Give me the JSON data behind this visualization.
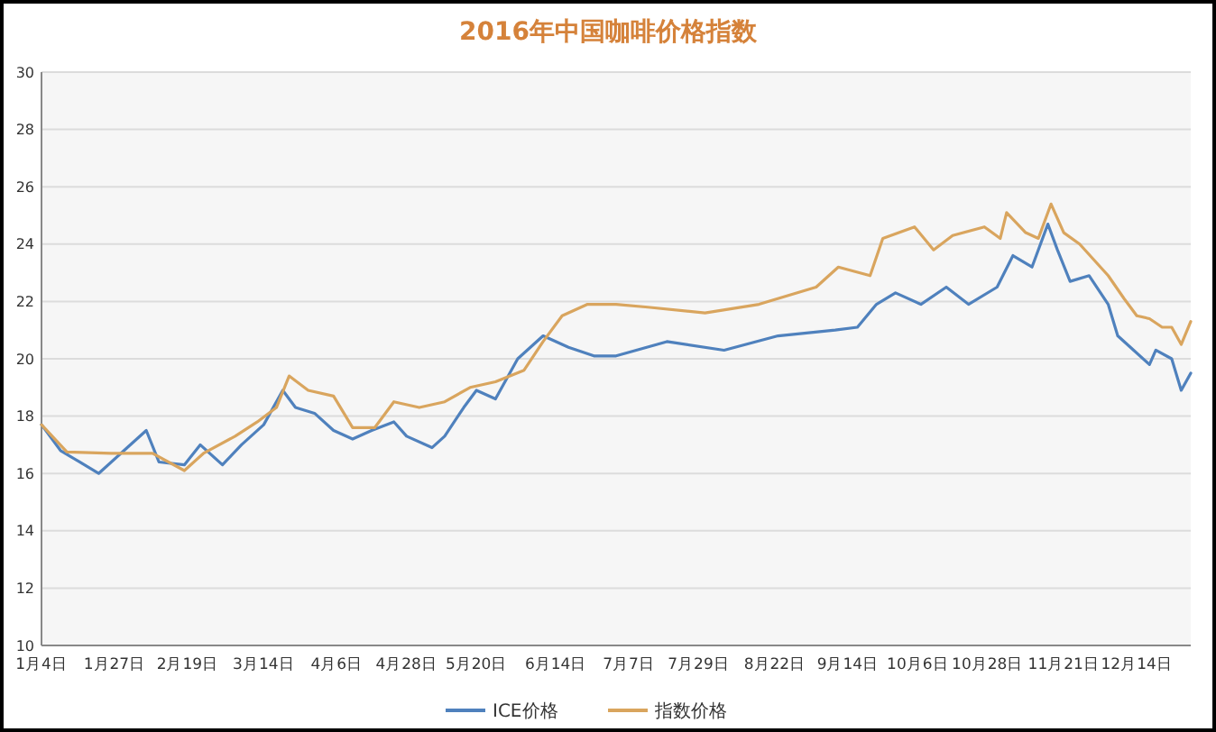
{
  "chart_data": {
    "type": "line",
    "title": "2016年中国咖啡价格指数",
    "xlim": [
      "--01-04",
      "--12-31"
    ],
    "xticks": [
      {
        "value": "--01-04",
        "label": "1月4日"
      },
      {
        "value": "--01-27",
        "label": "1月27日"
      },
      {
        "value": "--02-19",
        "label": "2月19日"
      },
      {
        "value": "--03-14",
        "label": "3月14日"
      },
      {
        "value": "--04-06",
        "label": "4月6日"
      },
      {
        "value": "--04-28",
        "label": "4月28日"
      },
      {
        "value": "--05-20",
        "label": "5月20日"
      },
      {
        "value": "--06-14",
        "label": "6月14日"
      },
      {
        "value": "--07-07",
        "label": "7月7日"
      },
      {
        "value": "--07-29",
        "label": "7月29日"
      },
      {
        "value": "--08-22",
        "label": "8月22日"
      },
      {
        "value": "--09-14",
        "label": "9月14日"
      },
      {
        "value": "--10-06",
        "label": "10月6日"
      },
      {
        "value": "--10-28",
        "label": "10月28日"
      },
      {
        "value": "--11-21",
        "label": "11月21日"
      },
      {
        "value": "--12-14",
        "label": "12月14日"
      }
    ],
    "ylim": [
      10,
      30
    ],
    "yticks": [
      10,
      12,
      14,
      16,
      18,
      20,
      22,
      24,
      26,
      28,
      30
    ],
    "grid": "y",
    "legend": "bottom",
    "marker": "none",
    "line_style": "solid",
    "series": [
      {
        "name": "ICE价格",
        "color": "#4f81bd",
        "x": [
          "--01-04",
          "--01-10",
          "--01-16",
          "--01-22",
          "--01-30",
          "--02-06",
          "--02-10",
          "--02-18",
          "--02-23",
          "--03-01",
          "--03-07",
          "--03-14",
          "--03-20",
          "--03-24",
          "--03-30",
          "--04-05",
          "--04-11",
          "--04-17",
          "--04-24",
          "--04-28",
          "--05-06",
          "--05-10",
          "--05-16",
          "--05-20",
          "--05-26",
          "--06-02",
          "--06-10",
          "--06-18",
          "--06-26",
          "--07-03",
          "--07-19",
          "--08-06",
          "--08-23",
          "--09-10",
          "--09-17",
          "--09-23",
          "--09-29",
          "--10-07",
          "--10-15",
          "--10-22",
          "--10-31",
          "--11-05",
          "--11-11",
          "--11-16",
          "--11-19",
          "--11-23",
          "--11-29",
          "--12-05",
          "--12-08",
          "--12-12",
          "--12-18",
          "--12-20",
          "--12-25",
          "--12-28",
          "--12-31"
        ],
        "values": [
          17.7,
          16.8,
          16.4,
          16.0,
          16.8,
          17.5,
          16.4,
          16.3,
          17.0,
          16.3,
          17.0,
          17.7,
          18.9,
          18.3,
          18.1,
          17.5,
          17.2,
          17.5,
          17.8,
          17.3,
          16.9,
          17.3,
          18.3,
          18.9,
          18.6,
          20.0,
          20.8,
          20.4,
          20.1,
          20.1,
          20.6,
          20.3,
          20.8,
          21.0,
          21.1,
          21.9,
          22.3,
          21.9,
          22.5,
          21.9,
          22.5,
          23.6,
          23.2,
          24.7,
          23.8,
          22.7,
          22.9,
          21.9,
          20.8,
          20.4,
          19.8,
          20.3,
          20.0,
          18.9,
          19.5
        ]
      },
      {
        "name": "指数价格",
        "color": "#d9a55e",
        "x": [
          "--01-04",
          "--01-12",
          "--01-26",
          "--02-08",
          "--02-18",
          "--02-24",
          "--03-05",
          "--03-12",
          "--03-18",
          "--03-22",
          "--03-28",
          "--04-05",
          "--04-11",
          "--04-18",
          "--04-24",
          "--05-02",
          "--05-10",
          "--05-18",
          "--05-26",
          "--06-04",
          "--06-10",
          "--06-16",
          "--06-24",
          "--07-03",
          "--07-13",
          "--07-31",
          "--08-17",
          "--09-04",
          "--09-11",
          "--09-21",
          "--09-25",
          "--10-05",
          "--10-11",
          "--10-17",
          "--10-27",
          "--11-01",
          "--11-03",
          "--11-09",
          "--11-13",
          "--11-17",
          "--11-21",
          "--11-26",
          "--12-05",
          "--12-10",
          "--12-14",
          "--12-18",
          "--12-22",
          "--12-25",
          "--12-28",
          "--12-31"
        ],
        "values": [
          17.7,
          16.75,
          16.7,
          16.7,
          16.1,
          16.7,
          17.3,
          17.8,
          18.3,
          19.4,
          18.9,
          18.7,
          17.6,
          17.6,
          18.5,
          18.3,
          18.5,
          19.0,
          19.2,
          19.6,
          20.6,
          21.5,
          21.9,
          21.9,
          21.8,
          21.6,
          21.9,
          22.5,
          23.2,
          22.9,
          24.2,
          24.6,
          23.8,
          24.3,
          24.6,
          24.2,
          25.1,
          24.4,
          24.2,
          25.4,
          24.4,
          24.0,
          22.9,
          22.1,
          21.5,
          21.4,
          21.1,
          21.1,
          20.5,
          21.3
        ]
      }
    ]
  }
}
